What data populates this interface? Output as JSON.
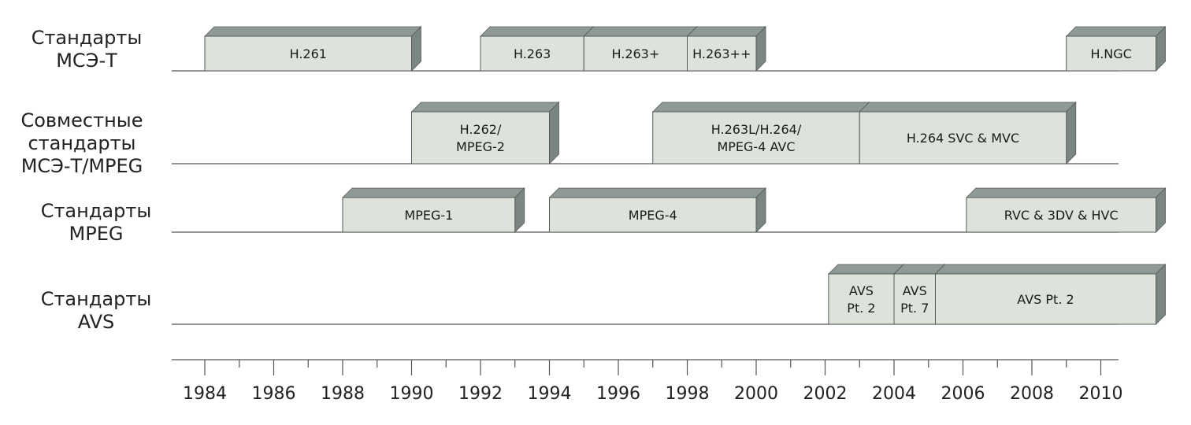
{
  "rows": [
    {
      "id": "itu",
      "label_lines": [
        "Стандарты",
        "МСЭ-Т"
      ],
      "bars": [
        {
          "lines": [
            "H.261"
          ],
          "start": 1984,
          "end": 1990
        },
        {
          "lines": [
            "H.263"
          ],
          "start": 1992,
          "end": 1995
        },
        {
          "lines": [
            "H.263+"
          ],
          "start": 1995,
          "end": 1998
        },
        {
          "lines": [
            "H.263++"
          ],
          "start": 1998,
          "end": 2000
        },
        {
          "lines": [
            "H.NGC"
          ],
          "start": 2009,
          "end": 2011.6
        }
      ]
    },
    {
      "id": "joint",
      "label_lines": [
        "Совместные",
        "стандарты",
        "МСЭ-Т/MPEG"
      ],
      "bars": [
        {
          "lines": [
            "H.262/",
            "MPEG-2"
          ],
          "start": 1990,
          "end": 1994
        },
        {
          "lines": [
            "H.263L/H.264/",
            "MPEG-4 AVC"
          ],
          "start": 1997,
          "end": 2003
        },
        {
          "lines": [
            "H.264 SVC & MVC"
          ],
          "start": 2003,
          "end": 2009
        }
      ]
    },
    {
      "id": "mpeg",
      "label_lines": [
        "Стандарты",
        "MPEG"
      ],
      "bars": [
        {
          "lines": [
            "MPEG-1"
          ],
          "start": 1988,
          "end": 1993
        },
        {
          "lines": [
            "MPEG-4"
          ],
          "start": 1994,
          "end": 2000
        },
        {
          "lines": [
            "RVC  & 3DV & HVC"
          ],
          "start": 2006.1,
          "end": 2011.6
        }
      ]
    },
    {
      "id": "avs",
      "label_lines": [
        "Стандарты",
        "AVS"
      ],
      "bars": [
        {
          "lines": [
            "AVS",
            "Pt. 2"
          ],
          "start": 2002.1,
          "end": 2004
        },
        {
          "lines": [
            "AVS",
            "Pt. 7"
          ],
          "start": 2004,
          "end": 2005.2
        },
        {
          "lines": [
            "AVS Pt. 2"
          ],
          "start": 2005.2,
          "end": 2011.6
        }
      ]
    }
  ],
  "axis": {
    "ticks": [
      1984,
      1986,
      1988,
      1990,
      1992,
      1994,
      1996,
      1998,
      2000,
      2002,
      2004,
      2006,
      2008,
      2010
    ],
    "domain": [
      1983,
      2010.6
    ]
  },
  "colors": {
    "bar_face": "#dde3da",
    "bar_top": "#8f9995",
    "bar_side": "#7b8581",
    "bar_border": "#555b58",
    "line": "#555555"
  }
}
